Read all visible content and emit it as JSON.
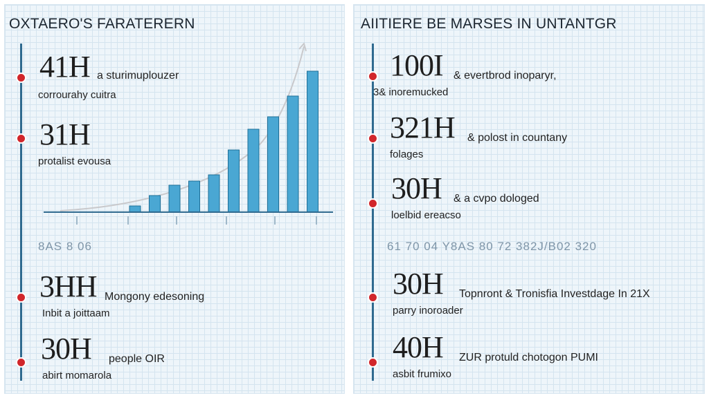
{
  "left_panel": {
    "title": "OXTAERO'S FARATERERN",
    "stats": [
      {
        "value": "41H",
        "inline": "a sturimuplouzer",
        "sub": "corrourahy cuitra"
      },
      {
        "value": "31H",
        "inline": "",
        "sub": "protalist evousa"
      },
      {
        "value": "3HH",
        "inline": "Mongony edesoning",
        "sub": "Inbit a joittaam"
      },
      {
        "value": "30H",
        "inline": "people OIR",
        "sub": "abirt momarola"
      }
    ],
    "faded_row": "8AS 8 06"
  },
  "right_panel": {
    "title": "AIITIERE BE MARSES IN UNTANTGR",
    "stats": [
      {
        "value": "100I",
        "inline": "& evertbrod inoparyr,",
        "sub": "3& inoremucked"
      },
      {
        "value": "321H",
        "inline": "& polost in countany",
        "sub": "folages"
      },
      {
        "value": "30H",
        "inline": "& a cvpo dologed",
        "sub": "loelbid ereacso"
      },
      {
        "value": "30H",
        "inline": "Topnront & Tronisfia Investdage In 21X",
        "sub": "parry inoroader"
      },
      {
        "value": "40H",
        "inline": "ZUR protuld chotogon PUMI",
        "sub": "asbit frumixo"
      }
    ],
    "faded_row": "61 70 04 Y8AS 80 72 382J/B02 320"
  },
  "colors": {
    "accent_red": "#d1262b",
    "timeline_blue": "#2f6a8f",
    "bar_blue": "#4aa7d3",
    "bar_outline": "#1f6f97",
    "trend_gray": "#c9c9cc"
  },
  "chart_data": {
    "type": "bar",
    "categories": [
      "1",
      "2",
      "3",
      "4",
      "5",
      "6",
      "7",
      "8",
      "9",
      "10"
    ],
    "values": [
      1.5,
      4,
      6.5,
      7.5,
      9,
      15,
      20,
      23,
      28,
      34
    ],
    "ylim": [
      0,
      40
    ],
    "trend_line": true,
    "axes_visible": false
  }
}
